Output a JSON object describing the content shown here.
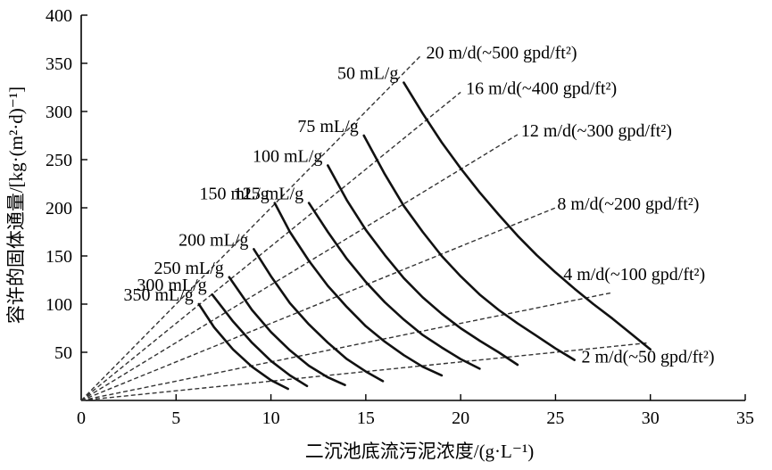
{
  "chart_data": {
    "type": "line",
    "xlabel": "二沉池底流污泥浓度/(g·L⁻¹)",
    "ylabel": "容许的固体通量/[kg·(m²·d)⁻¹]",
    "xlim": [
      0,
      35
    ],
    "ylim": [
      0,
      400
    ],
    "xticks": [
      "0",
      "5",
      "10",
      "15",
      "20",
      "25",
      "30",
      "35"
    ],
    "yticks": [
      "50",
      "100",
      "150",
      "200",
      "250",
      "300",
      "350",
      "400"
    ],
    "flux_curves": [
      {
        "name": "350 mL/g",
        "x": [
          6.2,
          7.0,
          8.0,
          9.0,
          10.0,
          10.9
        ],
        "y": [
          100,
          76,
          53,
          35,
          21,
          12
        ]
      },
      {
        "name": "300 mL/g",
        "x": [
          6.9,
          8.0,
          9.0,
          10.0,
          11.0,
          11.9
        ],
        "y": [
          110,
          82,
          60,
          41,
          26,
          15
        ]
      },
      {
        "name": "250 mL/g",
        "x": [
          7.8,
          9.0,
          10.0,
          11.0,
          12.0,
          13.0,
          13.9
        ],
        "y": [
          128,
          94,
          71,
          52,
          36,
          24,
          16
        ]
      },
      {
        "name": "200 mL/g",
        "x": [
          9.1,
          10.0,
          11.0,
          12.0,
          13.0,
          14.0,
          15.0,
          15.9
        ],
        "y": [
          157,
          129,
          101,
          79,
          60,
          43,
          30,
          20
        ]
      },
      {
        "name": "150 mL/g",
        "x": [
          10.2,
          11.0,
          12.0,
          13.0,
          14.0,
          15.0,
          16.0,
          17.0,
          18.0,
          19.0
        ],
        "y": [
          205,
          175,
          145,
          119,
          97,
          77,
          61,
          47,
          35,
          26
        ]
      },
      {
        "name": "125 mL/g",
        "x": [
          12.0,
          13.0,
          14.0,
          15.0,
          16.0,
          17.0,
          18.0,
          19.0,
          20.0,
          21.0
        ],
        "y": [
          205,
          175,
          147,
          123,
          102,
          84,
          68,
          55,
          43,
          33
        ]
      },
      {
        "name": "100 mL/g",
        "x": [
          13.0,
          14.0,
          15.0,
          16.0,
          17.0,
          18.0,
          19.0,
          20.0,
          21.0,
          22.0,
          23.0
        ],
        "y": [
          244,
          208,
          177,
          151,
          127,
          107,
          90,
          75,
          62,
          50,
          37
        ]
      },
      {
        "name": "75 mL/g",
        "x": [
          14.9,
          16.0,
          17.0,
          18.0,
          19.0,
          20.0,
          21.0,
          22.0,
          23.0,
          24.0,
          25.0,
          26.0
        ],
        "y": [
          275,
          235,
          202,
          175,
          150,
          129,
          110,
          94,
          80,
          67,
          54,
          42
        ]
      },
      {
        "name": "50 mL/g",
        "x": [
          17.0,
          18.0,
          19.0,
          20.0,
          21.0,
          22.0,
          23.0,
          24.0,
          25.0,
          26.0,
          27.0,
          28.0,
          29.0,
          30.0
        ],
        "y": [
          330,
          298,
          268,
          241,
          216,
          193,
          171,
          151,
          133,
          116,
          100,
          85,
          69,
          53
        ]
      }
    ],
    "overflow_rate_lines": [
      {
        "name": "20 m/d(~500 gpd/ft²)",
        "x": [
          0,
          17.9
        ],
        "y": [
          0,
          358
        ]
      },
      {
        "name": "16 m/d(~400 gpd/ft²)",
        "x": [
          0,
          20
        ],
        "y": [
          0,
          320
        ]
      },
      {
        "name": "12 m/d(~300 gpd/ft²)",
        "x": [
          0,
          23
        ],
        "y": [
          0,
          276
        ]
      },
      {
        "name": "8 m/d(~200 gpd/ft²)",
        "x": [
          0,
          25
        ],
        "y": [
          0,
          200
        ]
      },
      {
        "name": "4 m/d(~100 gpd/ft²)",
        "x": [
          0,
          28
        ],
        "y": [
          0,
          112
        ]
      },
      {
        "name": "2 m/d(~50 gpd/ft²)",
        "x": [
          0,
          29.8
        ],
        "y": [
          0,
          59.6
        ]
      }
    ]
  }
}
